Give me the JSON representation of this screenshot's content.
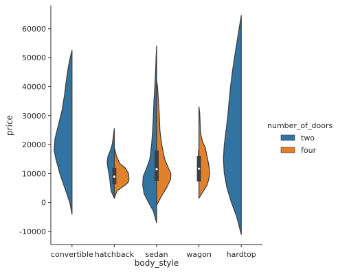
{
  "chart_data": {
    "type": "violin",
    "split": true,
    "title": "",
    "xlabel": "body_style",
    "ylabel": "price",
    "categories": [
      "convertible",
      "hatchback",
      "sedan",
      "wagon",
      "hardtop"
    ],
    "ylim": [
      -14500,
      68000
    ],
    "y_ticks": [
      -10000,
      0,
      10000,
      20000,
      30000,
      40000,
      50000,
      60000
    ],
    "grid": false,
    "legend": {
      "title": "number_of_doors",
      "placement": "right",
      "entries": [
        {
          "label": "two",
          "color": "#3274a1"
        },
        {
          "label": "four",
          "color": "#e1812c"
        }
      ]
    },
    "series": [
      {
        "name": "two",
        "color": "#3274a1",
        "side": "left",
        "violins": [
          {
            "category": "convertible",
            "profile": [
              [
                -4000,
                0.0
              ],
              [
                0,
                0.12
              ],
              [
                5000,
                0.4
              ],
              [
                10000,
                0.68
              ],
              [
                15000,
                0.9
              ],
              [
                18000,
                1.0
              ],
              [
                22000,
                0.95
              ],
              [
                27000,
                0.75
              ],
              [
                32000,
                0.55
              ],
              [
                37000,
                0.42
              ],
              [
                42000,
                0.32
              ],
              [
                47000,
                0.2
              ],
              [
                50000,
                0.1
              ],
              [
                52500,
                0.0
              ]
            ]
          },
          {
            "category": "hatchback",
            "profile": [
              [
                1500,
                0.0
              ],
              [
                4000,
                0.18
              ],
              [
                6000,
                0.22
              ],
              [
                8000,
                0.25
              ],
              [
                10000,
                0.3
              ],
              [
                12000,
                0.36
              ],
              [
                14000,
                0.4
              ],
              [
                16000,
                0.35
              ],
              [
                18000,
                0.22
              ],
              [
                20000,
                0.12
              ],
              [
                22000,
                0.07
              ],
              [
                25500,
                0.0
              ]
            ]
          },
          {
            "category": "sedan",
            "profile": [
              [
                -7000,
                0.0
              ],
              [
                -3000,
                0.18
              ],
              [
                0,
                0.45
              ],
              [
                3000,
                0.7
              ],
              [
                6000,
                0.78
              ],
              [
                9000,
                0.75
              ],
              [
                12000,
                0.55
              ],
              [
                15000,
                0.38
              ],
              [
                20000,
                0.28
              ],
              [
                25000,
                0.22
              ],
              [
                30000,
                0.18
              ],
              [
                35000,
                0.15
              ],
              [
                40000,
                0.1
              ],
              [
                45000,
                0.06
              ],
              [
                50000,
                0.03
              ],
              [
                54000,
                0.0
              ]
            ]
          },
          {
            "category": "wagon",
            "profile": [
              [
                7000,
                0.0
              ],
              [
                8000,
                0.04
              ],
              [
                10000,
                0.06
              ],
              [
                12000,
                0.06
              ],
              [
                14000,
                0.05
              ],
              [
                16000,
                0.03
              ],
              [
                18000,
                0.02
              ]
            ]
          },
          {
            "category": "hardtop",
            "profile": [
              [
                -11000,
                0.0
              ],
              [
                -5000,
                0.25
              ],
              [
                0,
                0.55
              ],
              [
                5000,
                0.8
              ],
              [
                10000,
                0.95
              ],
              [
                15000,
                1.0
              ],
              [
                20000,
                0.95
              ],
              [
                25000,
                0.85
              ],
              [
                30000,
                0.75
              ],
              [
                35000,
                0.68
              ],
              [
                40000,
                0.6
              ],
              [
                45000,
                0.5
              ],
              [
                50000,
                0.38
              ],
              [
                55000,
                0.25
              ],
              [
                60000,
                0.12
              ],
              [
                64500,
                0.0
              ]
            ]
          }
        ]
      },
      {
        "name": "four",
        "color": "#e1812c",
        "side": "right",
        "violins": [
          {
            "category": "hatchback",
            "profile": [
              [
                1500,
                0.0
              ],
              [
                4000,
                0.15
              ],
              [
                6000,
                0.6
              ],
              [
                7000,
                0.78
              ],
              [
                8000,
                0.82
              ],
              [
                10000,
                0.8
              ],
              [
                12000,
                0.6
              ],
              [
                13500,
                0.3
              ],
              [
                16000,
                0.12
              ],
              [
                19000,
                0.0
              ]
            ]
          },
          {
            "category": "sedan",
            "profile": [
              [
                -1000,
                0.0
              ],
              [
                2000,
                0.25
              ],
              [
                5000,
                0.55
              ],
              [
                8000,
                0.78
              ],
              [
                10000,
                0.8
              ],
              [
                12000,
                0.65
              ],
              [
                15000,
                0.45
              ],
              [
                20000,
                0.28
              ],
              [
                25000,
                0.18
              ],
              [
                30000,
                0.15
              ],
              [
                35000,
                0.1
              ],
              [
                40000,
                0.05
              ],
              [
                42000,
                0.0
              ]
            ]
          },
          {
            "category": "wagon",
            "profile": [
              [
                1500,
                0.0
              ],
              [
                4000,
                0.25
              ],
              [
                6000,
                0.45
              ],
              [
                8000,
                0.55
              ],
              [
                10000,
                0.6
              ],
              [
                13000,
                0.55
              ],
              [
                16000,
                0.45
              ],
              [
                19000,
                0.35
              ],
              [
                21000,
                0.2
              ],
              [
                23000,
                0.12
              ],
              [
                25000,
                0.08
              ],
              [
                28000,
                0.06
              ],
              [
                31000,
                0.04
              ],
              [
                33000,
                0.0
              ]
            ]
          }
        ]
      }
    ],
    "inner_boxes": [
      {
        "category": "hatchback",
        "q1": 6300,
        "q3": 12000,
        "median": 8900
      },
      {
        "category": "sedan",
        "q1": 7500,
        "q3": 18000,
        "median": 11500
      },
      {
        "category": "wagon",
        "q1": 7300,
        "q3": 16000,
        "median": 11700
      }
    ]
  }
}
